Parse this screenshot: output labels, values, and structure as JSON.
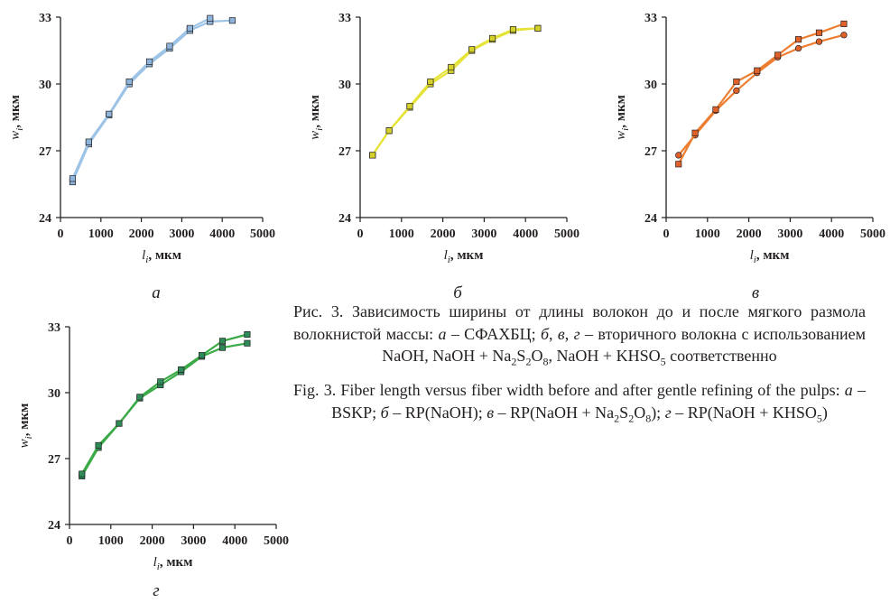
{
  "chart_data": [
    {
      "type": "line",
      "panel_label": "а",
      "xlabel": "l",
      "xlabel_sub": "i",
      "xlabel_unit": ", мкм",
      "ylabel": "w",
      "ylabel_sub": "i",
      "ylabel_unit": ", мкм",
      "xlim": [
        0,
        5000
      ],
      "ylim": [
        24,
        33
      ],
      "xticks": [
        0,
        1000,
        2000,
        3000,
        4000,
        5000
      ],
      "yticks": [
        24,
        27,
        30,
        33
      ],
      "grid": false,
      "legend": "none",
      "series": [
        {
          "color": "#9dc3e6",
          "marker_fill": "#8eb4dc",
          "marker": "square",
          "x": [
            300,
            700,
            1200,
            1700,
            2200,
            2700,
            3200,
            3700,
            4250
          ],
          "y": [
            25.6,
            27.3,
            28.6,
            30.0,
            30.9,
            31.6,
            32.4,
            32.8,
            32.85
          ]
        },
        {
          "color": "#9dc3e6",
          "marker_fill": "#8eb4dc",
          "marker": "square",
          "x": [
            300,
            700,
            1200,
            1700,
            2200,
            2700,
            3200,
            3700
          ],
          "y": [
            25.75,
            27.4,
            28.65,
            30.1,
            31.0,
            31.7,
            32.5,
            32.95
          ]
        }
      ]
    },
    {
      "type": "line",
      "panel_label": "б",
      "xlabel": "l",
      "xlabel_sub": "i",
      "xlabel_unit": ", мкм",
      "ylabel": "w",
      "ylabel_sub": "i",
      "ylabel_unit": ", мкм",
      "xlim": [
        0,
        5000
      ],
      "ylim": [
        24,
        33
      ],
      "xticks": [
        0,
        1000,
        2000,
        3000,
        4000,
        5000
      ],
      "yticks": [
        24,
        27,
        30,
        33
      ],
      "grid": false,
      "legend": "none",
      "series": [
        {
          "color": "#e5e338",
          "marker_fill": "#d4d12a",
          "marker": "square",
          "x": [
            300,
            700,
            1200,
            1700,
            2200,
            2700,
            3200,
            3700,
            4300
          ],
          "y": [
            26.8,
            27.9,
            28.95,
            30.0,
            30.6,
            31.5,
            32.0,
            32.4,
            32.5
          ]
        },
        {
          "color": "#e5e338",
          "marker_fill": "#d4d12a",
          "marker": "square",
          "x": [
            300,
            700,
            1200,
            1700,
            2200,
            2700,
            3200,
            3700,
            4300
          ],
          "y": [
            26.8,
            27.9,
            29.0,
            30.1,
            30.75,
            31.55,
            32.05,
            32.45,
            32.5
          ]
        }
      ]
    },
    {
      "type": "line",
      "panel_label": "в",
      "xlabel": "l",
      "xlabel_sub": "i",
      "xlabel_unit": ", мкм",
      "ylabel": "w",
      "ylabel_sub": "i",
      "ylabel_unit": ", мкм",
      "xlim": [
        0,
        5000
      ],
      "ylim": [
        24,
        33
      ],
      "xticks": [
        0,
        1000,
        2000,
        3000,
        4000,
        5000
      ],
      "yticks": [
        24,
        27,
        30,
        33
      ],
      "grid": false,
      "legend": "none",
      "series": [
        {
          "color": "#ed7d31",
          "marker_fill": "#e0622a",
          "marker": "circle",
          "x": [
            300,
            700,
            1200,
            1700,
            2200,
            2700,
            3200,
            3700,
            4300
          ],
          "y": [
            26.8,
            27.7,
            28.8,
            29.7,
            30.5,
            31.2,
            31.6,
            31.9,
            32.2
          ]
        },
        {
          "color": "#ed7d31",
          "marker_fill": "#e0622a",
          "marker": "square",
          "x": [
            300,
            700,
            1200,
            1700,
            2200,
            2700,
            3200,
            3700,
            4300
          ],
          "y": [
            26.4,
            27.8,
            28.85,
            30.1,
            30.6,
            31.3,
            32.0,
            32.3,
            32.7
          ]
        }
      ]
    },
    {
      "type": "line",
      "panel_label": "г",
      "xlabel": "l",
      "xlabel_sub": "i",
      "xlabel_unit": ", мкм",
      "ylabel": "w",
      "ylabel_sub": "i",
      "ylabel_unit": ", мкм",
      "xlim": [
        0,
        5000
      ],
      "ylim": [
        24,
        33
      ],
      "xticks": [
        0,
        1000,
        2000,
        3000,
        4000,
        5000
      ],
      "yticks": [
        24,
        27,
        30,
        33
      ],
      "grid": false,
      "legend": "none",
      "series": [
        {
          "color": "#3aaa47",
          "marker_fill": "#2e8b57",
          "marker": "square",
          "x": [
            300,
            700,
            1200,
            1700,
            2200,
            2700,
            3200,
            3700,
            4300
          ],
          "y": [
            26.2,
            27.5,
            28.6,
            29.75,
            30.35,
            30.95,
            31.65,
            32.05,
            32.25
          ]
        },
        {
          "color": "#3aaa47",
          "marker_fill": "#2e8b57",
          "marker": "square",
          "x": [
            300,
            700,
            1200,
            1700,
            2200,
            2700,
            3200,
            3700,
            4300
          ],
          "y": [
            26.3,
            27.6,
            28.6,
            29.8,
            30.5,
            31.05,
            31.7,
            32.35,
            32.65
          ]
        }
      ]
    }
  ],
  "caption": {
    "ru_parts": [
      {
        "t": "Рис. 3. Зависимость ширины от длины волокон до и после мягкого размола волокнистой массы: "
      },
      {
        "t": "а",
        "i": true
      },
      {
        "t": " – СФАХБЦ; "
      },
      {
        "t": "б",
        "i": true
      },
      {
        "t": ", "
      },
      {
        "t": "в",
        "i": true
      },
      {
        "t": ", "
      },
      {
        "t": "г",
        "i": true
      },
      {
        "t": " – вторичного волокна с использованием NaOH, NaOH + Na"
      },
      {
        "t": "2",
        "sub": true
      },
      {
        "t": "S"
      },
      {
        "t": "2",
        "sub": true
      },
      {
        "t": "O"
      },
      {
        "t": "8",
        "sub": true
      },
      {
        "t": ", NaOH + KHSO"
      },
      {
        "t": "5",
        "sub": true
      },
      {
        "t": " соответственно"
      }
    ],
    "en_parts": [
      {
        "t": "Fig. 3. Fiber length versus fiber width before and after gentle refining of the pulps: "
      },
      {
        "t": "а",
        "i": true
      },
      {
        "t": " – BSKP; "
      },
      {
        "t": "б",
        "i": true
      },
      {
        "t": " – RP(NaOH); "
      },
      {
        "t": "в",
        "i": true
      },
      {
        "t": " – RP(NaOH + Na"
      },
      {
        "t": "2",
        "sub": true
      },
      {
        "t": "S"
      },
      {
        "t": "2",
        "sub": true
      },
      {
        "t": "O"
      },
      {
        "t": "8",
        "sub": true
      },
      {
        "t": "); "
      },
      {
        "t": "г",
        "i": true
      },
      {
        "t": " – RP(NaOH + KHSO"
      },
      {
        "t": "5",
        "sub": true
      },
      {
        "t": ")"
      }
    ]
  }
}
